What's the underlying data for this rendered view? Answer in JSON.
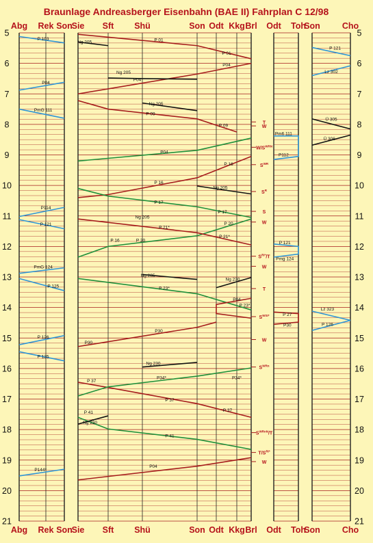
{
  "title": "Braunlage Andreasberger Eisenbahn (BAE II) Fahrplan C 12/98",
  "hours": [
    5,
    6,
    7,
    8,
    9,
    10,
    11,
    12,
    13,
    14,
    15,
    16,
    17,
    18,
    19,
    20,
    21
  ],
  "panels": [
    {
      "id": "p1",
      "stations": [
        "Abg",
        "Rek",
        "Son"
      ]
    },
    {
      "id": "p2",
      "stations": [
        "Sie",
        "Sft",
        "Shü",
        "Son",
        "Odt",
        "Kkg",
        "Brl"
      ]
    },
    {
      "id": "p3",
      "stations": [
        "Odt",
        "Toh"
      ]
    },
    {
      "id": "p4",
      "stations": [
        "Son",
        "Cho"
      ]
    }
  ],
  "signals": [
    {
      "label": "T",
      "time": 7.92
    },
    {
      "label": "W",
      "time": 8.05
    },
    {
      "label": "W/S",
      "sup": "WRN",
      "time": 8.75
    },
    {
      "label": "S",
      "sup": "WR",
      "time": 9.32
    },
    {
      "label": "S",
      "sup": "R",
      "time": 10.2
    },
    {
      "label": "S",
      "time": 10.85
    },
    {
      "label": "W",
      "time": 11.2
    },
    {
      "label": "S",
      "sup": "Ri*",
      "suffix": "/T",
      "time": 12.32
    },
    {
      "label": "W",
      "time": 12.65
    },
    {
      "label": "T",
      "time": 13.38
    },
    {
      "label": "S",
      "sup": "WSI*",
      "time": 14.3
    },
    {
      "label": "W",
      "time": 15.05
    },
    {
      "label": "S",
      "sup": "WRn",
      "time": 15.95
    },
    {
      "label": "S",
      "sup": "WRnN",
      "suffix": "/T",
      "time": 18.1
    },
    {
      "label": "T/S",
      "sup": "Ri*",
      "time": 18.75
    },
    {
      "label": "W",
      "time": 19.05
    }
  ],
  "trains": [
    {
      "label": "P 103",
      "color": "blue",
      "panel": "p1",
      "pts": [
        [
          0,
          5.12
        ],
        [
          2,
          5.33
        ]
      ],
      "lab": [
        0.9,
        5.25
      ]
    },
    {
      "label": "P04",
      "color": "blue",
      "panel": "p1",
      "pts": [
        [
          2,
          6.62
        ],
        [
          0,
          6.88
        ]
      ],
      "lab": [
        1,
        6.68
      ]
    },
    {
      "label": "PmG 111",
      "color": "blue",
      "panel": "p1",
      "pts": [
        [
          0,
          7.5
        ],
        [
          2,
          7.8
        ]
      ],
      "lab": [
        0.9,
        7.58
      ]
    },
    {
      "label": "P114",
      "color": "blue",
      "panel": "p1",
      "pts": [
        [
          2,
          10.72
        ],
        [
          0,
          11.02
        ]
      ],
      "lab": [
        1,
        10.78
      ]
    },
    {
      "label": "P 121",
      "color": "blue",
      "panel": "p1",
      "pts": [
        [
          0,
          11.12
        ],
        [
          2,
          11.42
        ]
      ],
      "lab": [
        1,
        11.32
      ]
    },
    {
      "label": "PmG 124",
      "color": "blue",
      "panel": "p1",
      "pts": [
        [
          2,
          12.7
        ],
        [
          0,
          12.88
        ]
      ],
      "lab": [
        0.9,
        12.72
      ]
    },
    {
      "label": "P 125",
      "color": "blue",
      "panel": "p1",
      "pts": [
        [
          0,
          13.05
        ],
        [
          2,
          13.45
        ]
      ],
      "lab": [
        1.4,
        13.35
      ]
    },
    {
      "label": "P 126",
      "color": "blue",
      "panel": "p1",
      "pts": [
        [
          2,
          14.92
        ],
        [
          0,
          15.22
        ]
      ],
      "lab": [
        0.9,
        15.02
      ]
    },
    {
      "label": "P 135",
      "color": "blue",
      "panel": "p1",
      "pts": [
        [
          0,
          15.45
        ],
        [
          2,
          15.75
        ]
      ],
      "lab": [
        0.9,
        15.65
      ]
    },
    {
      "label": "P144*",
      "color": "blue",
      "panel": "p1",
      "pts": [
        [
          2,
          19.3
        ],
        [
          0,
          19.52
        ]
      ],
      "lab": [
        0.8,
        19.36
      ]
    },
    {
      "label": "P 01",
      "color": "red",
      "panel": "p2",
      "pts": [
        [
          0,
          5.05
        ],
        [
          3,
          5.42
        ],
        [
          6,
          5.85
        ]
      ],
      "lab": [
        2.3,
        5.28
      ]
    },
    {
      "label": "P 01",
      "color": "red",
      "panel": "p2",
      "pts": [
        [
          3,
          5.42
        ],
        [
          3,
          5.42
        ]
      ],
      "lab": [
        4.5,
        5.72
      ]
    },
    {
      "label": "P04",
      "color": "red",
      "panel": "p2",
      "pts": [
        [
          6,
          6.0
        ],
        [
          3,
          6.35
        ],
        [
          0,
          7.0
        ]
      ],
      "lab": [
        1.85,
        6.58
      ]
    },
    {
      "label": "P04",
      "color": "red",
      "panel": "p2",
      "pts": [
        [
          6,
          6.0
        ],
        [
          6,
          6.0
        ]
      ],
      "lab": [
        4.5,
        6.1
      ]
    },
    {
      "label": "Ng 205",
      "color": "black",
      "panel": "p2",
      "pts": [
        [
          0,
          5.3
        ],
        [
          1,
          5.42
        ]
      ],
      "lab": [
        0.22,
        5.35
      ]
    },
    {
      "label": "Ng 205",
      "color": "black",
      "panel": "p2",
      "pts": [
        [
          1,
          6.48
        ],
        [
          2,
          6.5
        ],
        [
          3,
          6.52
        ]
      ],
      "lab": [
        1.45,
        6.35
      ]
    },
    {
      "label": "Ng 205",
      "color": "black",
      "panel": "p2",
      "pts": [
        [
          2,
          7.3
        ],
        [
          3,
          7.55
        ]
      ],
      "lab": [
        2.25,
        7.38
      ]
    },
    {
      "label": "P 09",
      "color": "red",
      "panel": "p2",
      "pts": [
        [
          0,
          7.22
        ],
        [
          1,
          7.5
        ],
        [
          3,
          7.82
        ],
        [
          5,
          8.25
        ]
      ],
      "lab": [
        2.15,
        7.7
      ]
    },
    {
      "label": "P 09",
      "color": "red",
      "panel": "p2",
      "pts": [
        [
          3,
          7.82
        ],
        [
          3,
          7.82
        ]
      ],
      "lab": [
        4.35,
        8.08
      ]
    },
    {
      "label": "P04",
      "color": "green",
      "panel": "p2",
      "pts": [
        [
          0,
          9.2
        ],
        [
          3,
          8.85
        ],
        [
          6,
          8.45
        ]
      ],
      "lab": [
        2.4,
        8.95
      ]
    },
    {
      "label": "P 16",
      "color": "red",
      "panel": "p2",
      "pts": [
        [
          6,
          9.05
        ],
        [
          3,
          9.75
        ],
        [
          1,
          10.3
        ],
        [
          0,
          10.4
        ]
      ],
      "lab": [
        2.3,
        9.95
      ]
    },
    {
      "label": "P 16",
      "color": "red",
      "panel": "p2",
      "pts": [
        [
          6,
          9.05
        ],
        [
          6,
          9.05
        ]
      ],
      "lab": [
        4.6,
        9.35
      ]
    },
    {
      "label": "Ng 205",
      "color": "black",
      "panel": "p2",
      "pts": [
        [
          3,
          10.02
        ],
        [
          6,
          10.28
        ]
      ],
      "lab": [
        4.2,
        10.12
      ]
    },
    {
      "label": "P 17",
      "color": "green",
      "panel": "p2",
      "pts": [
        [
          0,
          10.1
        ],
        [
          1,
          10.35
        ],
        [
          3,
          10.7
        ],
        [
          6,
          11.05
        ]
      ],
      "lab": [
        2.3,
        10.6
      ]
    },
    {
      "label": "P 17",
      "color": "green",
      "panel": "p2",
      "pts": [
        [
          3,
          10.7
        ],
        [
          3,
          10.7
        ]
      ],
      "lab": [
        4.3,
        10.92
      ]
    },
    {
      "label": "Ng 205",
      "color": "black",
      "panel": "p2",
      "pts": [
        [
          1,
          11.0
        ],
        [
          1,
          11.0
        ]
      ],
      "lab": [
        2.0,
        11.08
      ]
    },
    {
      "label": "P 20",
      "color": "green",
      "panel": "p2",
      "pts": [
        [
          6,
          11.1
        ],
        [
          3,
          11.65
        ],
        [
          1,
          12.0
        ],
        [
          0,
          12.35
        ]
      ],
      "lab": [
        1.95,
        11.85
      ]
    },
    {
      "label": "P 20",
      "color": "green",
      "panel": "p2",
      "pts": [
        [
          6,
          11.1
        ],
        [
          6,
          11.1
        ]
      ],
      "lab": [
        4.6,
        11.3
      ]
    },
    {
      "label": "P 21*",
      "color": "red",
      "panel": "p2",
      "pts": [
        [
          0,
          11.1
        ],
        [
          3,
          11.55
        ],
        [
          6,
          11.95
        ]
      ],
      "lab": [
        2.4,
        11.42
      ]
    },
    {
      "label": "P 21*",
      "color": "red",
      "panel": "p2",
      "pts": [
        [
          6,
          11.95
        ],
        [
          6,
          11.95
        ]
      ],
      "lab": [
        4.4,
        11.72
      ]
    },
    {
      "label": "P 16",
      "color": "red",
      "panel": "p2",
      "pts": [
        [
          0,
          11.75
        ],
        [
          0,
          11.75
        ]
      ],
      "lab": [
        1.2,
        11.85
      ]
    },
    {
      "label": "Ng 205",
      "color": "black",
      "panel": "p2",
      "pts": [
        [
          2,
          12.92
        ],
        [
          3,
          13.08
        ]
      ],
      "lab": [
        2.1,
        13.0
      ]
    },
    {
      "label": "Ng 230",
      "color": "black",
      "panel": "p2",
      "pts": [
        [
          4,
          13.35
        ],
        [
          6,
          13.02
        ]
      ],
      "lab": [
        4.8,
        13.12
      ]
    },
    {
      "label": "P 23*",
      "color": "green",
      "panel": "p2",
      "pts": [
        [
          0,
          13.05
        ],
        [
          3,
          13.55
        ],
        [
          6,
          14.08
        ]
      ],
      "lab": [
        2.4,
        13.42
      ]
    },
    {
      "label": "P 23*",
      "color": "green",
      "panel": "p2",
      "pts": [
        [
          6,
          14.08
        ],
        [
          6,
          14.08
        ]
      ],
      "lab": [
        5.55,
        13.98
      ]
    },
    {
      "label": "P04",
      "color": "red",
      "panel": "p2",
      "pts": [
        [
          6,
          13.7
        ],
        [
          4,
          13.9
        ],
        [
          4,
          14.2
        ],
        [
          6,
          14.35
        ]
      ],
      "lab": [
        5.0,
        13.78
      ]
    },
    {
      "label": "P30",
      "color": "red",
      "panel": "p2",
      "pts": [
        [
          4,
          14.48
        ],
        [
          3,
          14.65
        ],
        [
          0,
          15.28
        ]
      ],
      "lab": [
        2.3,
        14.82
      ]
    },
    {
      "label": "P30",
      "color": "red",
      "panel": "p2",
      "pts": [
        [
          0,
          15.28
        ],
        [
          0,
          15.28
        ]
      ],
      "lab": [
        0.35,
        15.2
      ]
    },
    {
      "label": "Ng 230",
      "color": "black",
      "panel": "p2",
      "pts": [
        [
          2,
          15.95
        ],
        [
          3,
          15.8
        ]
      ],
      "lab": [
        2.2,
        15.88
      ]
    },
    {
      "label": "P 37",
      "color": "red",
      "panel": "p2",
      "pts": [
        [
          0,
          16.45
        ],
        [
          1,
          16.62
        ],
        [
          3,
          17.15
        ],
        [
          6,
          17.6
        ]
      ],
      "lab": [
        0.45,
        16.45
      ]
    },
    {
      "label": "P 37",
      "color": "red",
      "panel": "p2",
      "pts": [
        [
          3,
          17.15
        ],
        [
          3,
          17.15
        ]
      ],
      "lab": [
        2.5,
        17.08
      ]
    },
    {
      "label": "P 37",
      "color": "red",
      "panel": "p2",
      "pts": [
        [
          4,
          17.35
        ],
        [
          4,
          17.35
        ]
      ],
      "lab": [
        4.55,
        17.42
      ]
    },
    {
      "label": "P34*",
      "color": "green",
      "panel": "p2",
      "pts": [
        [
          6,
          15.98
        ],
        [
          3,
          16.25
        ],
        [
          1,
          16.6
        ],
        [
          0,
          16.9
        ]
      ],
      "lab": [
        2.35,
        16.35
      ]
    },
    {
      "label": "P34*",
      "color": "green",
      "panel": "p2",
      "pts": [
        [
          6,
          15.98
        ],
        [
          6,
          15.98
        ]
      ],
      "lab": [
        5.0,
        16.35
      ]
    },
    {
      "label": "P 41",
      "color": "green",
      "panel": "p2",
      "pts": [
        [
          0,
          17.6
        ],
        [
          1,
          17.98
        ],
        [
          3,
          18.32
        ],
        [
          6,
          18.65
        ]
      ],
      "lab": [
        2.5,
        18.25
      ]
    },
    {
      "label": "P 41",
      "color": "green",
      "panel": "p2",
      "pts": [
        [
          0,
          17.6
        ],
        [
          0,
          17.6
        ]
      ],
      "lab": [
        0.35,
        17.48
      ]
    },
    {
      "label": "Ng 230",
      "color": "black",
      "panel": "p2",
      "pts": [
        [
          0,
          17.82
        ],
        [
          1,
          17.55
        ]
      ],
      "lab": [
        0.4,
        17.82
      ]
    },
    {
      "label": "P04",
      "color": "red",
      "panel": "p2",
      "pts": [
        [
          6,
          18.92
        ],
        [
          3,
          19.2
        ],
        [
          0,
          19.65
        ]
      ],
      "lab": [
        2.2,
        19.25
      ]
    },
    {
      "label": "P 121",
      "color": "blue",
      "panel": "p4",
      "pts": [
        [
          0,
          5.48
        ],
        [
          1,
          5.75
        ]
      ],
      "lab": [
        0.6,
        5.55
      ]
    },
    {
      "label": "Lz 302",
      "color": "blue",
      "panel": "p4",
      "pts": [
        [
          1,
          6.08
        ],
        [
          0,
          6.4
        ]
      ],
      "lab": [
        0.5,
        6.32
      ]
    },
    {
      "label": "Ü 305",
      "color": "black",
      "panel": "p4",
      "pts": [
        [
          0,
          7.82
        ],
        [
          1,
          8.15
        ]
      ],
      "lab": [
        0.5,
        7.88
      ]
    },
    {
      "label": "Ü 306",
      "color": "black",
      "panel": "p4",
      "pts": [
        [
          1,
          8.35
        ],
        [
          0,
          8.68
        ]
      ],
      "lab": [
        0.45,
        8.52
      ]
    },
    {
      "label": "Lz 323",
      "color": "blue",
      "panel": "p4",
      "pts": [
        [
          0,
          14.12
        ],
        [
          1,
          14.42
        ]
      ],
      "lab": [
        0.4,
        14.1
      ]
    },
    {
      "label": "P 126",
      "color": "blue",
      "panel": "p4",
      "pts": [
        [
          1,
          14.42
        ],
        [
          0,
          14.75
        ]
      ],
      "lab": [
        0.4,
        14.6
      ]
    },
    {
      "label": "Pm6 111",
      "color": "blue",
      "panel": "p3",
      "pts": [
        [
          0,
          8.38
        ],
        [
          1,
          8.38
        ],
        [
          1,
          9.05
        ],
        [
          0,
          9.15
        ]
      ],
      "lab": [
        0.4,
        8.35
      ]
    },
    {
      "label": "P112",
      "color": "blue",
      "panel": "p3",
      "pts": [
        [
          0,
          9.15
        ],
        [
          0,
          9.15
        ]
      ],
      "lab": [
        0.4,
        9.05
      ]
    },
    {
      "label": "P 121",
      "color": "blue",
      "panel": "p3",
      "pts": [
        [
          0,
          11.92
        ],
        [
          1,
          12.0
        ],
        [
          1,
          12.25
        ],
        [
          0,
          12.35
        ]
      ],
      "lab": [
        0.45,
        11.92
      ]
    },
    {
      "label": "Pmg 124",
      "color": "blue",
      "panel": "p3",
      "pts": [
        [
          0,
          12.35
        ],
        [
          0,
          12.35
        ]
      ],
      "lab": [
        0.45,
        12.45
      ]
    },
    {
      "label": "P 27",
      "color": "red",
      "panel": "p3",
      "pts": [
        [
          0,
          14.15
        ],
        [
          1,
          14.2
        ],
        [
          1,
          14.48
        ],
        [
          0,
          14.55
        ]
      ],
      "lab": [
        0.55,
        14.28
      ]
    },
    {
      "label": "P30",
      "color": "red",
      "panel": "p3",
      "pts": [
        [
          0,
          14.55
        ],
        [
          0,
          14.55
        ]
      ],
      "lab": [
        0.55,
        14.62
      ]
    }
  ]
}
